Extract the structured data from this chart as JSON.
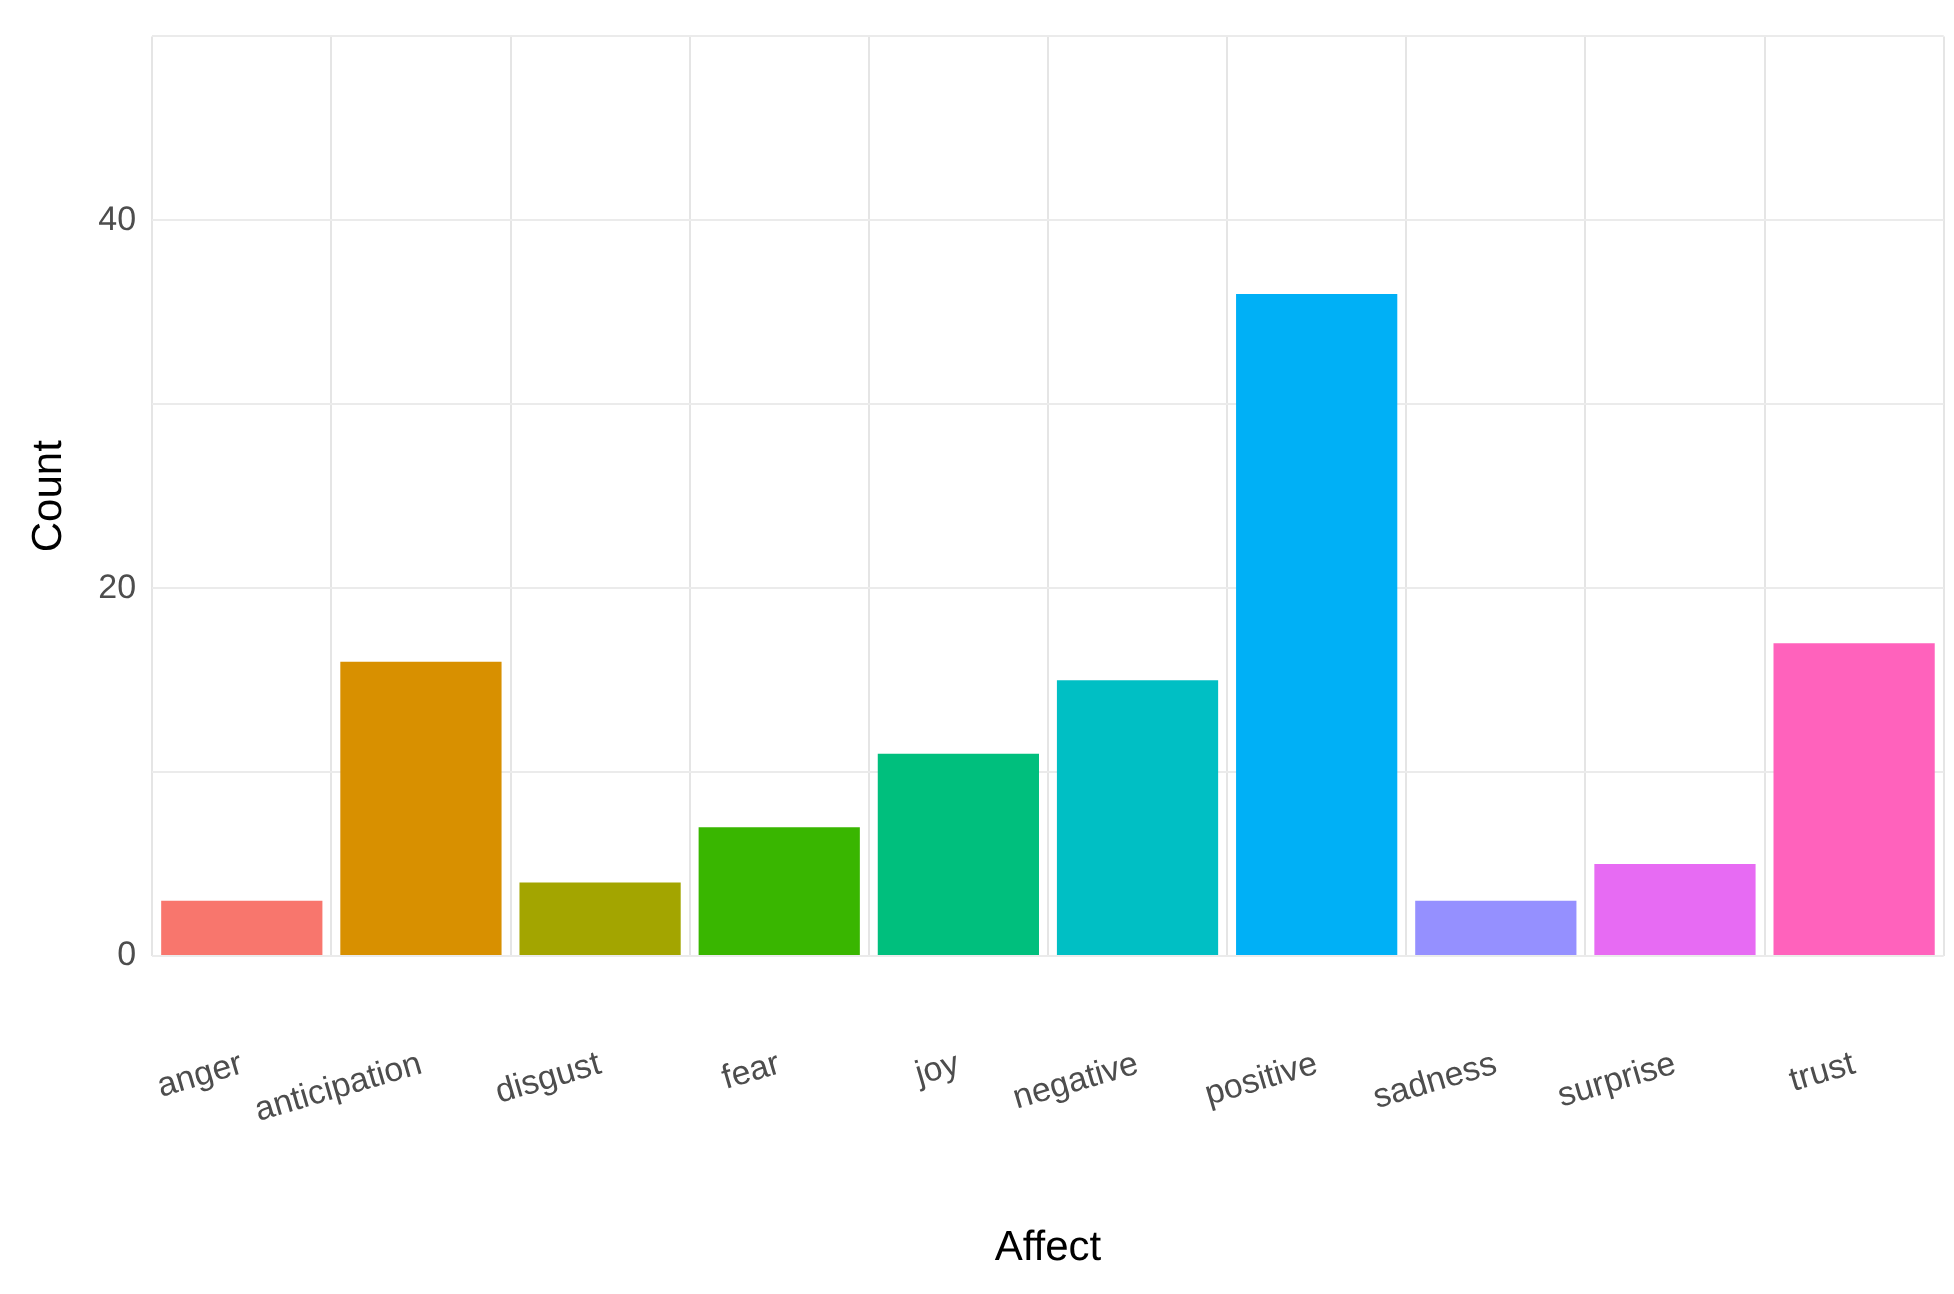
{
  "chart_data": {
    "type": "bar",
    "xlabel": "Affect",
    "ylabel": "Count",
    "categories": [
      "anger",
      "anticipation",
      "disgust",
      "fear",
      "joy",
      "negative",
      "positive",
      "sadness",
      "surprise",
      "trust"
    ],
    "values": [
      3,
      16,
      4,
      7,
      11,
      15,
      36,
      3,
      5,
      17
    ],
    "colors": [
      "#f8766d",
      "#d89000",
      "#a3a500",
      "#39b600",
      "#00bf7d",
      "#00bfc4",
      "#00b0f6",
      "#9590ff",
      "#e76bf3",
      "#ff62bc"
    ],
    "ylim": [
      0,
      50
    ],
    "yticks": [
      0,
      {
        "value": 10,
        "label": null
      },
      20,
      {
        "value": 30,
        "label": null
      },
      40,
      {
        "value": 50,
        "label": null
      }
    ],
    "grid": true,
    "legend": false
  }
}
